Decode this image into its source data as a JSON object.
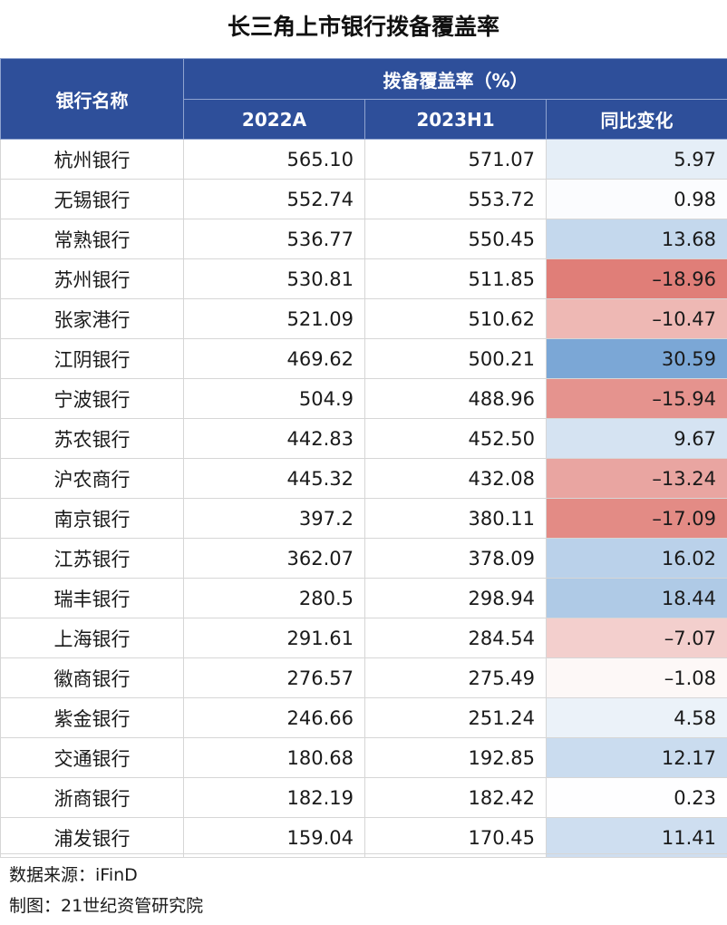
{
  "title": "长三角上市银行拨备覆盖率",
  "header": {
    "bank_col": "银行名称",
    "group": "拨备覆盖率（%）",
    "col_2022": "2022A",
    "col_2023": "2023H1",
    "col_change": "同比变化"
  },
  "colors": {
    "header_bg": "#2e4f9a",
    "positive_max": "#7ba7d6",
    "negative_max": "#e07e78"
  },
  "chart_data": {
    "type": "table",
    "title": "长三角上市银行拨备覆盖率",
    "columns": [
      "银行名称",
      "2022A",
      "2023H1",
      "同比变化"
    ],
    "rows": [
      {
        "name": "杭州银行",
        "y2022": "565.10",
        "y2023": "571.07",
        "change": "5.97"
      },
      {
        "name": "无锡银行",
        "y2022": "552.74",
        "y2023": "553.72",
        "change": "0.98"
      },
      {
        "name": "常熟银行",
        "y2022": "536.77",
        "y2023": "550.45",
        "change": "13.68"
      },
      {
        "name": "苏州银行",
        "y2022": "530.81",
        "y2023": "511.85",
        "change": "–18.96"
      },
      {
        "name": "张家港行",
        "y2022": "521.09",
        "y2023": "510.62",
        "change": "–10.47"
      },
      {
        "name": "江阴银行",
        "y2022": "469.62",
        "y2023": "500.21",
        "change": "30.59"
      },
      {
        "name": "宁波银行",
        "y2022": "504.9",
        "y2023": "488.96",
        "change": "–15.94"
      },
      {
        "name": "苏农银行",
        "y2022": "442.83",
        "y2023": "452.50",
        "change": "9.67"
      },
      {
        "name": "沪农商行",
        "y2022": "445.32",
        "y2023": "432.08",
        "change": "–13.24"
      },
      {
        "name": "南京银行",
        "y2022": "397.2",
        "y2023": "380.11",
        "change": "–17.09"
      },
      {
        "name": "江苏银行",
        "y2022": "362.07",
        "y2023": "378.09",
        "change": "16.02"
      },
      {
        "name": "瑞丰银行",
        "y2022": "280.5",
        "y2023": "298.94",
        "change": "18.44"
      },
      {
        "name": "上海银行",
        "y2022": "291.61",
        "y2023": "284.54",
        "change": "–7.07"
      },
      {
        "name": "徽商银行",
        "y2022": "276.57",
        "y2023": "275.49",
        "change": "–1.08"
      },
      {
        "name": "紫金银行",
        "y2022": "246.66",
        "y2023": "251.24",
        "change": "4.58"
      },
      {
        "name": "交通银行",
        "y2022": "180.68",
        "y2023": "192.85",
        "change": "12.17"
      },
      {
        "name": "浙商银行",
        "y2022": "182.19",
        "y2023": "182.42",
        "change": "0.23"
      },
      {
        "name": "浦发银行",
        "y2022": "159.04",
        "y2023": "170.45",
        "change": "11.41"
      }
    ]
  },
  "footer": {
    "source": "数据来源：iFinD",
    "maker": "制图：21世纪资管研究院"
  }
}
